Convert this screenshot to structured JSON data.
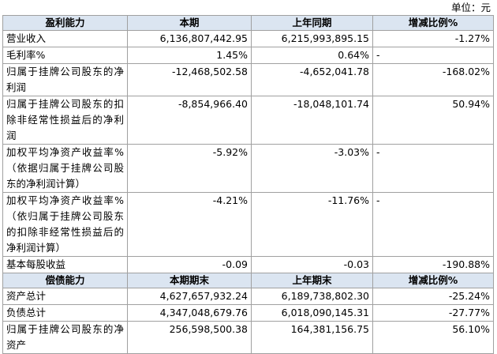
{
  "unit": "单位：元",
  "sections": [
    {
      "header": [
        "盈利能力",
        "本期",
        "上年同期",
        "增减比例%"
      ],
      "rows": [
        [
          "营业收入",
          "6,136,807,442.95",
          "6,215,993,895.15",
          "-1.27%"
        ],
        [
          "毛利率%",
          "1.45%",
          "0.64%",
          "-"
        ],
        [
          "归属于挂牌公司股东的净利润",
          "-12,468,502.58",
          "-4,652,041.78",
          "-168.02%"
        ],
        [
          "归属于挂牌公司股东的扣除非经常性损益后的净利润",
          "-8,854,966.40",
          "-18,048,101.74",
          "50.94%"
        ],
        [
          "加权平均净资产收益率%（依据归属于挂牌公司股东的净利润计算）",
          "-5.92%",
          "-3.03%",
          "-"
        ],
        [
          "加权平均净资产收益率%（依归属于挂牌公司股东的扣除非经常性损益后的净利润计算）",
          "-4.21%",
          "-11.76%",
          "-"
        ],
        [
          "基本每股收益",
          "-0.09",
          "-0.03",
          "-190.88%"
        ]
      ]
    },
    {
      "header": [
        "偿债能力",
        "本期期末",
        "上年期末",
        "增减比例%"
      ],
      "rows": [
        [
          "资产总计",
          "4,627,657,932.24",
          "6,189,738,802.30",
          "-25.24%"
        ],
        [
          "负债总计",
          "4,347,048,679.76",
          "6,018,090,145.31",
          "-27.77%"
        ],
        [
          "归属于挂牌公司股东的净资产",
          "256,598,500.38",
          "164,381,156.75",
          "56.10%"
        ]
      ]
    }
  ]
}
